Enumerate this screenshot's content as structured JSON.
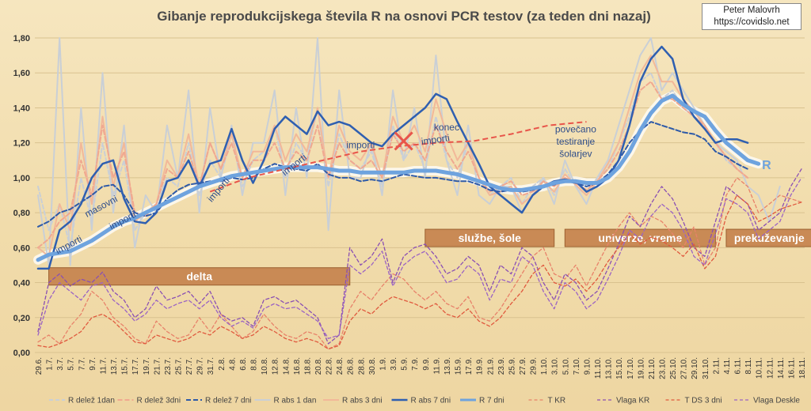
{
  "chart_data": {
    "type": "line",
    "title": "Gibanje reprodukcijskega števila R na osnovi PCR testov (za teden dni nazaj)",
    "credit": [
      "Peter Malovrh",
      "https://covidslo.net"
    ],
    "ylim": [
      0,
      1.8
    ],
    "yticks": [
      "0,00",
      "0,20",
      "0,40",
      "0,60",
      "0,80",
      "1,00",
      "1,20",
      "1,40",
      "1,60",
      "1,80"
    ],
    "x": [
      "29.6.",
      "1.7.",
      "3.7.",
      "5.7.",
      "7.7.",
      "9.7.",
      "11.7.",
      "13.7.",
      "15.7.",
      "17.7.",
      "19.7.",
      "21.7.",
      "23.7.",
      "25.7.",
      "27.7.",
      "29.7.",
      "31.7.",
      "2.8.",
      "4.8.",
      "6.8.",
      "8.8.",
      "10.8.",
      "12.8.",
      "14.8.",
      "16.8.",
      "18.8.",
      "20.8.",
      "22.8.",
      "24.8.",
      "26.8.",
      "28.8.",
      "30.8.",
      "1.9.",
      "3.9.",
      "5.9.",
      "7.9.",
      "9.9.",
      "11.9.",
      "13.9.",
      "15.9.",
      "17.9.",
      "19.9.",
      "21.9.",
      "23.9.",
      "25.9.",
      "27.9.",
      "29.9.",
      "1.10.",
      "3.10.",
      "5.10.",
      "7.10.",
      "9.10.",
      "11.10.",
      "13.10.",
      "15.10.",
      "17.10.",
      "19.10.",
      "21.10.",
      "23.10.",
      "25.10.",
      "27.10.",
      "29.10.",
      "31.10.",
      "2.11.",
      "4.11.",
      "6.11.",
      "8.11.",
      "10.11.",
      "12.11.",
      "14.11.",
      "16.11.",
      "18.11."
    ],
    "series": [
      {
        "name": "R delež 1dan",
        "color": "#c9cfd6",
        "dash": "5,3",
        "width": 2,
        "values": [
          0.95,
          0.7,
          0.85,
          0.6,
          1.0,
          0.75,
          1.2,
          0.9,
          1.1,
          0.7,
          0.8,
          0.85,
          1.0,
          0.95,
          1.2,
          0.9,
          1.1,
          1.0,
          1.25,
          0.95,
          1.1,
          1.15,
          1.3,
          1.0,
          1.2,
          1.1,
          1.4,
          0.95,
          1.25,
          1.1,
          1.05,
          1.15,
          0.95,
          1.3,
          1.1,
          1.2,
          1.05,
          1.35,
          1.1,
          1.0,
          1.2,
          1.0,
          0.9,
          0.95,
          1.0,
          0.85,
          0.95,
          1.0,
          0.9,
          1.05,
          0.95,
          0.9,
          1.0,
          1.05,
          1.2,
          1.35,
          1.55,
          1.6,
          1.45,
          1.5,
          1.4,
          1.35,
          1.3,
          1.2,
          1.1,
          1.05,
          1.0,
          null,
          null,
          null,
          null,
          null
        ]
      },
      {
        "name": "R delež 3dni",
        "color": "#f0a890",
        "dash": "6,3",
        "width": 2,
        "values": [
          0.6,
          0.65,
          0.75,
          0.8,
          1.1,
          0.9,
          1.3,
          1.0,
          1.15,
          0.8,
          0.78,
          0.85,
          1.05,
          1.0,
          1.15,
          0.95,
          1.2,
          1.05,
          1.2,
          1.0,
          1.1,
          1.1,
          1.2,
          1.05,
          1.15,
          1.1,
          1.3,
          1.0,
          1.2,
          1.1,
          1.05,
          1.1,
          1.0,
          1.25,
          1.15,
          1.2,
          1.1,
          1.3,
          1.15,
          1.05,
          1.15,
          1.0,
          0.92,
          0.95,
          0.98,
          0.9,
          0.92,
          0.98,
          0.95,
          1.0,
          0.97,
          0.93,
          0.98,
          1.05,
          1.15,
          1.3,
          1.5,
          1.55,
          1.45,
          1.45,
          1.4,
          1.35,
          1.3,
          1.2,
          1.12,
          1.05,
          1.0,
          null,
          null,
          null,
          null,
          null
        ]
      },
      {
        "name": "R delež 7 dni",
        "color": "#2e5aa8",
        "dash": "6,3",
        "width": 2,
        "values": [
          0.72,
          0.75,
          0.8,
          0.82,
          0.86,
          0.9,
          0.95,
          0.96,
          0.9,
          0.8,
          0.78,
          0.8,
          0.88,
          0.93,
          0.96,
          0.97,
          0.98,
          0.98,
          1.0,
          0.99,
          1.0,
          1.05,
          1.08,
          1.06,
          1.05,
          1.04,
          1.08,
          1.02,
          1.0,
          1.0,
          0.98,
          0.99,
          0.98,
          1.0,
          1.02,
          1.01,
          1.0,
          1.0,
          0.99,
          0.98,
          0.98,
          0.96,
          0.93,
          0.92,
          0.93,
          0.92,
          0.93,
          0.95,
          0.96,
          0.98,
          0.97,
          0.95,
          0.97,
          1.02,
          1.1,
          1.2,
          1.27,
          1.32,
          1.3,
          1.28,
          1.26,
          1.25,
          1.22,
          1.15,
          1.12,
          1.08,
          1.05,
          null,
          null,
          null,
          null,
          null
        ]
      },
      {
        "name": "R abs 1 dan",
        "color": "#c9cfd6",
        "dash": "",
        "width": 2,
        "values": [
          0.9,
          0.5,
          1.8,
          0.5,
          1.4,
          0.7,
          1.6,
          0.8,
          1.3,
          0.6,
          0.9,
          0.8,
          1.3,
          1.0,
          1.5,
          0.8,
          1.4,
          1.0,
          1.3,
          0.9,
          1.2,
          1.2,
          1.5,
          0.9,
          1.4,
          1.0,
          1.8,
          0.7,
          1.5,
          1.0,
          1.0,
          1.2,
          0.9,
          1.5,
          1.1,
          1.4,
          1.0,
          1.7,
          1.1,
          0.9,
          1.3,
          0.9,
          0.85,
          0.95,
          0.95,
          0.8,
          0.9,
          1.0,
          0.85,
          1.1,
          0.95,
          0.85,
          1.0,
          1.1,
          1.3,
          1.5,
          1.7,
          1.8,
          1.5,
          1.6,
          1.5,
          1.4,
          1.3,
          1.2,
          1.15,
          1.1,
          0.95,
          0.9,
          0.75,
          0.95,
          null,
          null
        ]
      },
      {
        "name": "R abs 3 dni",
        "color": "#f2b899",
        "dash": "",
        "width": 2,
        "values": [
          0.6,
          0.55,
          0.85,
          0.7,
          1.2,
          0.85,
          1.35,
          0.95,
          1.2,
          0.75,
          0.8,
          0.85,
          1.1,
          1.0,
          1.25,
          0.95,
          1.2,
          1.05,
          1.25,
          1.0,
          1.15,
          1.15,
          1.3,
          1.1,
          1.25,
          1.15,
          1.4,
          1.0,
          1.3,
          1.15,
          1.1,
          1.2,
          1.0,
          1.35,
          1.2,
          1.3,
          1.15,
          1.45,
          1.25,
          1.1,
          1.2,
          1.0,
          0.9,
          0.92,
          0.95,
          0.85,
          0.9,
          0.98,
          0.92,
          1.02,
          0.96,
          0.9,
          0.98,
          1.08,
          1.2,
          1.4,
          1.6,
          1.7,
          1.55,
          1.55,
          1.45,
          1.38,
          1.3,
          1.2,
          1.12,
          1.05,
          1.0,
          null,
          null,
          null,
          null,
          null
        ]
      },
      {
        "name": "R abs 7 dni",
        "color": "#2f5fb0",
        "dash": "",
        "width": 2.5,
        "values": [
          0.48,
          0.48,
          0.7,
          0.75,
          0.85,
          1.0,
          1.08,
          1.1,
          0.88,
          0.75,
          0.74,
          0.8,
          0.98,
          1.0,
          1.1,
          0.95,
          1.08,
          1.1,
          1.28,
          1.1,
          0.97,
          1.1,
          1.28,
          1.35,
          1.3,
          1.25,
          1.38,
          1.3,
          1.32,
          1.3,
          1.25,
          1.2,
          1.18,
          1.25,
          1.3,
          1.35,
          1.4,
          1.48,
          1.45,
          1.32,
          1.2,
          1.08,
          0.95,
          0.9,
          0.85,
          0.8,
          0.9,
          0.95,
          0.98,
          0.99,
          0.98,
          0.92,
          0.95,
          1.0,
          1.1,
          1.3,
          1.55,
          1.68,
          1.75,
          1.68,
          1.45,
          1.35,
          1.28,
          1.2,
          1.22,
          1.22,
          1.2,
          null,
          null,
          null,
          null,
          null
        ]
      },
      {
        "name": "R 7 dni",
        "color": "#6ea3de",
        "dash": "",
        "width": 5,
        "values": [
          0.53,
          0.56,
          0.57,
          0.58,
          0.61,
          0.64,
          0.68,
          0.72,
          0.75,
          0.77,
          0.8,
          0.83,
          0.86,
          0.89,
          0.92,
          0.95,
          0.97,
          0.99,
          1.01,
          1.02,
          1.03,
          1.04,
          1.05,
          1.06,
          1.06,
          1.06,
          1.06,
          1.05,
          1.04,
          1.04,
          1.03,
          1.03,
          1.03,
          1.03,
          1.03,
          1.04,
          1.04,
          1.04,
          1.03,
          1.02,
          1.0,
          0.98,
          0.96,
          0.94,
          0.93,
          0.93,
          0.94,
          0.95,
          0.97,
          0.98,
          0.98,
          0.97,
          0.97,
          1.0,
          1.06,
          1.15,
          1.27,
          1.37,
          1.44,
          1.47,
          1.42,
          1.38,
          1.35,
          1.27,
          1.2,
          1.15,
          1.1,
          1.08,
          null,
          null,
          null,
          null
        ]
      },
      {
        "name": "T KR",
        "color": "#e8826a",
        "dash": "4,3",
        "width": 1.3,
        "values": [
          0.06,
          0.1,
          0.05,
          0.15,
          0.22,
          0.35,
          0.3,
          0.2,
          0.15,
          0.08,
          0.05,
          0.18,
          0.12,
          0.08,
          0.1,
          0.2,
          0.12,
          0.22,
          0.15,
          0.08,
          0.12,
          0.22,
          0.15,
          0.1,
          0.08,
          0.12,
          0.1,
          0.02,
          0.05,
          0.25,
          0.35,
          0.3,
          0.38,
          0.45,
          0.42,
          0.35,
          0.3,
          0.35,
          0.28,
          0.25,
          0.32,
          0.2,
          0.18,
          0.25,
          0.35,
          0.45,
          0.55,
          0.6,
          0.45,
          0.42,
          0.5,
          0.38,
          0.5,
          0.62,
          0.72,
          0.8,
          0.72,
          0.78,
          0.75,
          0.68,
          0.6,
          0.72,
          0.5,
          0.6,
          0.9,
          1.0,
          0.95,
          0.8,
          0.85,
          0.9,
          0.88,
          0.86
        ]
      },
      {
        "name": "Vlaga KR",
        "color": "#8a4fb3",
        "dash": "4,3",
        "width": 1.3,
        "values": [
          0.12,
          0.4,
          0.45,
          0.38,
          0.42,
          0.4,
          0.46,
          0.35,
          0.3,
          0.2,
          0.25,
          0.38,
          0.3,
          0.32,
          0.35,
          0.28,
          0.35,
          0.22,
          0.18,
          0.2,
          0.15,
          0.3,
          0.32,
          0.28,
          0.3,
          0.25,
          0.2,
          0.05,
          0.1,
          0.6,
          0.5,
          0.55,
          0.65,
          0.4,
          0.55,
          0.6,
          0.62,
          0.55,
          0.45,
          0.48,
          0.55,
          0.5,
          0.35,
          0.5,
          0.45,
          0.6,
          0.55,
          0.4,
          0.3,
          0.45,
          0.4,
          0.3,
          0.35,
          0.48,
          0.62,
          0.78,
          0.72,
          0.85,
          0.95,
          0.88,
          0.75,
          0.6,
          0.55,
          0.75,
          0.95,
          0.9,
          0.85,
          0.7,
          0.75,
          0.8,
          0.95,
          1.05
        ]
      },
      {
        "name": "T DS 3 dni",
        "color": "#e0593e",
        "dash": "4,3",
        "width": 1.3,
        "values": [
          0.04,
          0.03,
          0.05,
          0.08,
          0.12,
          0.2,
          0.22,
          0.18,
          0.12,
          0.06,
          0.05,
          0.1,
          0.08,
          0.06,
          0.08,
          0.12,
          0.1,
          0.15,
          0.12,
          0.08,
          0.1,
          0.15,
          0.12,
          0.08,
          0.06,
          0.08,
          0.06,
          0.02,
          0.04,
          0.18,
          0.25,
          0.22,
          0.28,
          0.32,
          0.3,
          0.28,
          0.25,
          0.28,
          0.22,
          0.2,
          0.25,
          0.18,
          0.15,
          0.2,
          0.28,
          0.35,
          0.45,
          0.5,
          0.4,
          0.38,
          0.42,
          0.35,
          0.42,
          0.52,
          0.6,
          0.68,
          0.62,
          0.66,
          0.64,
          0.6,
          0.55,
          0.62,
          0.48,
          0.55,
          0.78,
          0.9,
          0.85,
          0.75,
          0.78,
          0.82,
          0.84,
          0.86
        ]
      },
      {
        "name": "Vlaga Deskle",
        "color": "#9b63c4",
        "dash": "4,3",
        "width": 1.3,
        "values": [
          0.1,
          0.3,
          0.4,
          0.35,
          0.3,
          0.38,
          0.4,
          0.3,
          0.25,
          0.18,
          0.22,
          0.3,
          0.25,
          0.28,
          0.3,
          0.25,
          0.3,
          0.2,
          0.15,
          0.18,
          0.14,
          0.25,
          0.28,
          0.25,
          0.26,
          0.22,
          0.18,
          0.08,
          0.1,
          0.5,
          0.45,
          0.5,
          0.58,
          0.38,
          0.5,
          0.55,
          0.58,
          0.5,
          0.4,
          0.42,
          0.5,
          0.45,
          0.3,
          0.42,
          0.4,
          0.55,
          0.5,
          0.35,
          0.25,
          0.4,
          0.35,
          0.25,
          0.3,
          0.42,
          0.55,
          0.7,
          0.65,
          0.78,
          0.85,
          0.8,
          0.7,
          0.55,
          0.5,
          0.68,
          0.88,
          0.85,
          0.8,
          0.65,
          0.7,
          0.75,
          0.9,
          1.0
        ]
      }
    ],
    "trend_line": {
      "color": "#e8554a",
      "from_index": 16,
      "to_index": 51,
      "values": [
        0.92,
        1.0,
        1.05,
        1.1,
        1.15,
        1.18,
        1.2,
        1.21,
        1.25,
        1.3,
        1.32
      ]
    },
    "annotations": [
      {
        "text": "importi",
        "x_index": 3,
        "y": 0.6,
        "rotate": -28
      },
      {
        "text": "masovni",
        "x_index": 6,
        "y": 0.82,
        "rotate": -28
      },
      {
        "text": "importi",
        "x_index": 8,
        "y": 0.74,
        "rotate": -28
      },
      {
        "text": "importi",
        "x_index": 17,
        "y": 0.92,
        "rotate": -50
      },
      {
        "text": "importi",
        "x_index": 24,
        "y": 1.06,
        "rotate": -38
      },
      {
        "text": "importi",
        "x_index": 30,
        "y": 1.17,
        "rotate": 0
      },
      {
        "text": "importi",
        "x_index": 37,
        "y": 1.2,
        "rotate": -8
      },
      {
        "text": "konec",
        "x_index": 38,
        "y": 1.27,
        "rotate": 0
      },
      {
        "text": "povečano",
        "x_index": 50,
        "y": 1.26,
        "rotate": 0
      },
      {
        "text": "testiranje",
        "x_index": 50,
        "y": 1.19,
        "rotate": 0
      },
      {
        "text": "šolarjev",
        "x_index": 50,
        "y": 1.12,
        "rotate": 0
      }
    ],
    "bands": [
      {
        "label": "delta",
        "from_index": 1,
        "to_index": 29,
        "y": 0.44
      },
      {
        "label": "službe, šole",
        "from_index": 36,
        "to_index": 48,
        "y": 0.66
      },
      {
        "label": "univerze, vreme",
        "from_index": 49,
        "to_index": 63,
        "y": 0.66
      },
      {
        "label": "prekuževanje",
        "from_index": 64,
        "to_index": 72,
        "y": 0.66
      }
    ],
    "series_label": "R",
    "legend": [
      "R delež 1dan",
      "R delež 3dni",
      "R delež 7 dni",
      "R abs 1 dan",
      "R abs 3 dni",
      "R abs 7 dni",
      "R 7 dni",
      "T KR",
      "Vlaga KR",
      "T DS 3 dni",
      "Vlaga Deskle"
    ]
  }
}
